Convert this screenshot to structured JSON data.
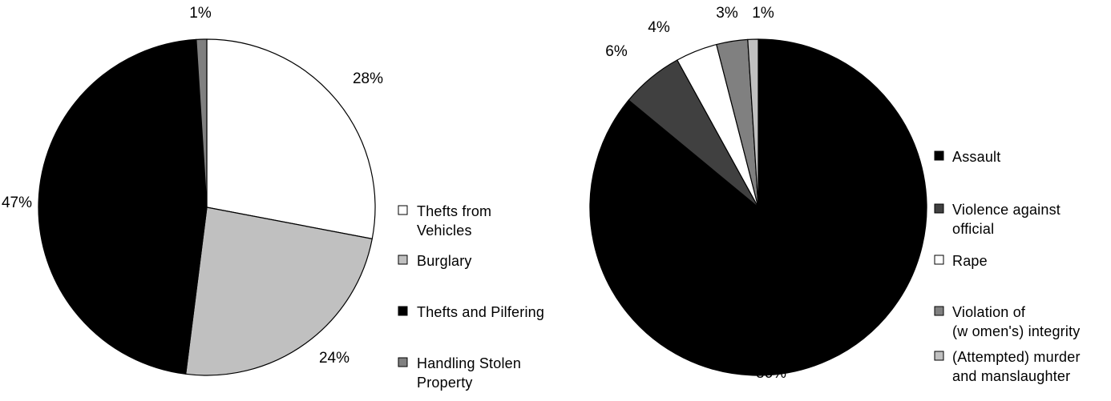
{
  "chart_data": [
    {
      "type": "pie",
      "title": "",
      "slices": [
        {
          "label": "Thefts from Vehicles",
          "value": 28,
          "display": "28%",
          "color": "#ffffff"
        },
        {
          "label": "Burglary",
          "value": 24,
          "display": "24%",
          "color": "#c0c0c0"
        },
        {
          "label": "Thefts and Pilfering",
          "value": 47,
          "display": "47%",
          "color": "#000000"
        },
        {
          "label": "Handling Stolen Property",
          "value": 1,
          "display": "1%",
          "color": "#808080"
        }
      ],
      "legend": {
        "placement": "right",
        "items": [
          [
            "Thefts from",
            "Vehicles"
          ],
          [
            "Burglary"
          ],
          [
            "Thefts and Pilfering"
          ],
          [
            "Handling Stolen",
            "Property"
          ]
        ]
      }
    },
    {
      "type": "pie",
      "title": "",
      "slices": [
        {
          "label": "Assault",
          "value": 86,
          "display": "86%",
          "color": "#000000"
        },
        {
          "label": "Violence against official",
          "value": 6,
          "display": "6%",
          "color": "#404040"
        },
        {
          "label": "Rape",
          "value": 4,
          "display": "4%",
          "color": "#ffffff"
        },
        {
          "label": "Violation of (women's) integrity",
          "value": 3,
          "display": "3%",
          "color": "#808080"
        },
        {
          "label": "(Attempted) murder and manslaughter",
          "value": 1,
          "display": "1%",
          "color": "#c0c0c0"
        }
      ],
      "legend": {
        "placement": "right",
        "items": [
          [
            "Assault"
          ],
          [
            "Violence against",
            "official"
          ],
          [
            "Rape"
          ],
          [
            "Violation of",
            "(w omen's) integrity"
          ],
          [
            "(Attempted) murder",
            "and manslaughter"
          ]
        ]
      }
    }
  ]
}
